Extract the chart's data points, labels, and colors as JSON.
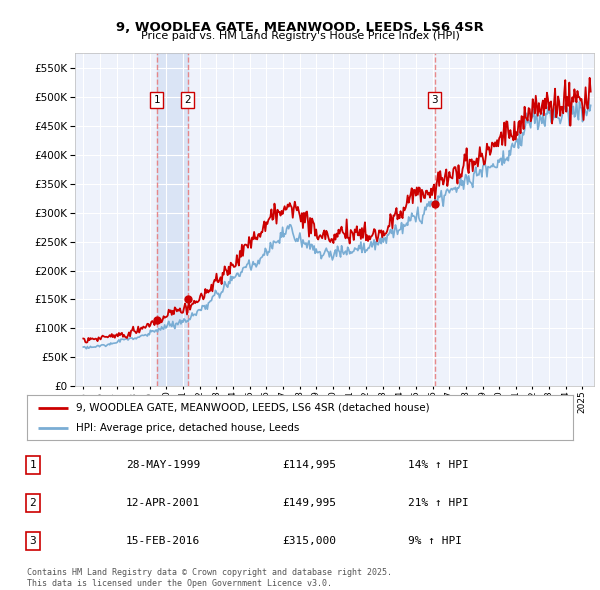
{
  "title": "9, WOODLEA GATE, MEANWOOD, LEEDS, LS6 4SR",
  "subtitle": "Price paid vs. HM Land Registry's House Price Index (HPI)",
  "legend_line1": "9, WOODLEA GATE, MEANWOOD, LEEDS, LS6 4SR (detached house)",
  "legend_line2": "HPI: Average price, detached house, Leeds",
  "transactions": [
    {
      "num": 1,
      "date": "28-MAY-1999",
      "date_x": 1999.41,
      "price": 114995,
      "pct": "14%",
      "dir": "↑"
    },
    {
      "num": 2,
      "date": "12-APR-2001",
      "date_x": 2001.28,
      "price": 149995,
      "pct": "21%",
      "dir": "↑"
    },
    {
      "num": 3,
      "date": "15-FEB-2016",
      "date_x": 2016.12,
      "price": 315000,
      "pct": "9%",
      "dir": "↑"
    }
  ],
  "red_color": "#cc0000",
  "blue_color": "#7aadd4",
  "vline_color": "#e87777",
  "background_color": "#eef2fb",
  "ylim": [
    0,
    575000
  ],
  "xlim_start": 1994.5,
  "xlim_end": 2025.7,
  "footer": "Contains HM Land Registry data © Crown copyright and database right 2025.\nThis data is licensed under the Open Government Licence v3.0.",
  "yticks": [
    0,
    50000,
    100000,
    150000,
    200000,
    250000,
    300000,
    350000,
    400000,
    450000,
    500000,
    550000
  ]
}
